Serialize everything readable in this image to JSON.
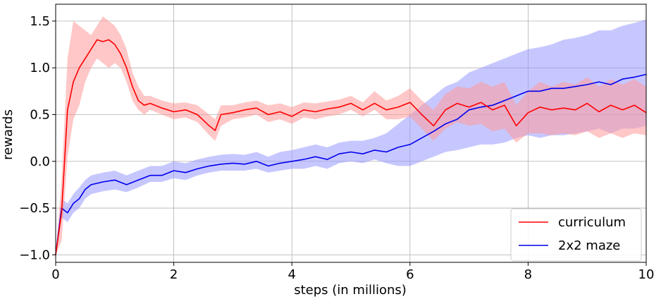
{
  "chart_data": {
    "type": "line",
    "title": "",
    "xlabel": "steps (in millions)",
    "ylabel": "rewards",
    "xlim": [
      0,
      10
    ],
    "ylim": [
      -1.08,
      1.68
    ],
    "xticks": [
      0,
      2,
      4,
      6,
      8,
      10
    ],
    "xtick_labels": [
      "0",
      "2",
      "4",
      "6",
      "8",
      "10"
    ],
    "yticks": [
      -1.0,
      -0.5,
      0.0,
      0.5,
      1.0,
      1.5
    ],
    "ytick_labels": [
      "−1.0",
      "−0.5",
      "0.0",
      "0.5",
      "1.0",
      "1.5"
    ],
    "grid": true,
    "legend_position": "bottom-right",
    "series": [
      {
        "name": "curriculum",
        "color": "#ff0000",
        "band_color": "#ff9999",
        "x": [
          0.0,
          0.1,
          0.2,
          0.3,
          0.4,
          0.5,
          0.6,
          0.7,
          0.8,
          0.9,
          1.0,
          1.1,
          1.2,
          1.3,
          1.4,
          1.5,
          1.6,
          1.8,
          2.0,
          2.2,
          2.4,
          2.6,
          2.7,
          2.8,
          3.0,
          3.2,
          3.4,
          3.6,
          3.8,
          4.0,
          4.2,
          4.4,
          4.6,
          4.8,
          5.0,
          5.2,
          5.4,
          5.6,
          5.8,
          6.0,
          6.2,
          6.4,
          6.6,
          6.8,
          7.0,
          7.2,
          7.4,
          7.6,
          7.8,
          8.0,
          8.2,
          8.4,
          8.6,
          8.8,
          9.0,
          9.2,
          9.4,
          9.6,
          9.8,
          10.0
        ],
        "mean": [
          -1.0,
          -0.55,
          0.55,
          0.85,
          1.0,
          1.1,
          1.2,
          1.3,
          1.28,
          1.3,
          1.25,
          1.15,
          1.0,
          0.8,
          0.65,
          0.6,
          0.62,
          0.57,
          0.53,
          0.55,
          0.5,
          0.38,
          0.33,
          0.5,
          0.52,
          0.55,
          0.57,
          0.5,
          0.53,
          0.48,
          0.55,
          0.53,
          0.56,
          0.58,
          0.62,
          0.55,
          0.62,
          0.55,
          0.58,
          0.63,
          0.5,
          0.38,
          0.55,
          0.62,
          0.58,
          0.63,
          0.55,
          0.6,
          0.38,
          0.52,
          0.58,
          0.55,
          0.57,
          0.55,
          0.62,
          0.53,
          0.6,
          0.55,
          0.6,
          0.52
        ],
        "lower": [
          -1.0,
          -0.85,
          0.05,
          0.45,
          0.6,
          0.85,
          1.0,
          1.1,
          1.05,
          1.0,
          1.05,
          1.0,
          0.85,
          0.65,
          0.55,
          0.5,
          0.55,
          0.5,
          0.45,
          0.47,
          0.42,
          0.28,
          0.22,
          0.38,
          0.45,
          0.47,
          0.5,
          0.42,
          0.45,
          0.4,
          0.47,
          0.45,
          0.48,
          0.5,
          0.55,
          0.48,
          0.55,
          0.45,
          0.45,
          0.48,
          0.35,
          0.22,
          0.35,
          0.42,
          0.38,
          0.4,
          0.32,
          0.35,
          0.2,
          0.3,
          0.3,
          0.28,
          0.3,
          0.28,
          0.32,
          0.25,
          0.3,
          0.25,
          0.3,
          0.28
        ],
        "upper": [
          -1.0,
          -0.2,
          1.1,
          1.5,
          1.45,
          1.4,
          1.35,
          1.45,
          1.55,
          1.5,
          1.45,
          1.35,
          1.2,
          0.95,
          0.8,
          0.7,
          0.7,
          0.65,
          0.62,
          0.63,
          0.6,
          0.5,
          0.45,
          0.6,
          0.6,
          0.63,
          0.65,
          0.6,
          0.62,
          0.58,
          0.63,
          0.62,
          0.64,
          0.66,
          0.7,
          0.63,
          0.75,
          0.65,
          0.7,
          0.78,
          0.65,
          0.55,
          0.72,
          0.8,
          0.78,
          0.85,
          0.8,
          0.85,
          0.6,
          0.75,
          0.85,
          0.8,
          0.85,
          0.82,
          0.9,
          0.8,
          0.88,
          0.82,
          0.88,
          0.8
        ]
      },
      {
        "name": "2x2 maze",
        "color": "#0000ee",
        "band_color": "#9999ff",
        "x": [
          0.0,
          0.1,
          0.2,
          0.3,
          0.4,
          0.5,
          0.6,
          0.8,
          1.0,
          1.2,
          1.4,
          1.6,
          1.8,
          2.0,
          2.2,
          2.4,
          2.6,
          2.8,
          3.0,
          3.2,
          3.4,
          3.6,
          3.8,
          4.0,
          4.2,
          4.4,
          4.6,
          4.8,
          5.0,
          5.2,
          5.4,
          5.6,
          5.8,
          6.0,
          6.2,
          6.4,
          6.6,
          6.8,
          7.0,
          7.2,
          7.4,
          7.6,
          7.8,
          8.0,
          8.2,
          8.4,
          8.6,
          8.8,
          9.0,
          9.2,
          9.4,
          9.6,
          9.8,
          10.0
        ],
        "mean": [
          -1.0,
          -0.5,
          -0.55,
          -0.45,
          -0.4,
          -0.3,
          -0.25,
          -0.22,
          -0.2,
          -0.25,
          -0.2,
          -0.15,
          -0.15,
          -0.1,
          -0.12,
          -0.08,
          -0.05,
          -0.03,
          -0.02,
          -0.03,
          0.0,
          -0.05,
          -0.02,
          0.0,
          0.02,
          0.05,
          0.02,
          0.08,
          0.1,
          0.08,
          0.12,
          0.1,
          0.15,
          0.18,
          0.25,
          0.32,
          0.4,
          0.45,
          0.55,
          0.58,
          0.6,
          0.65,
          0.7,
          0.75,
          0.75,
          0.78,
          0.78,
          0.8,
          0.82,
          0.85,
          0.82,
          0.88,
          0.9,
          0.93
        ],
        "lower": [
          -1.0,
          -0.6,
          -0.65,
          -0.55,
          -0.5,
          -0.4,
          -0.35,
          -0.32,
          -0.3,
          -0.33,
          -0.28,
          -0.22,
          -0.22,
          -0.18,
          -0.2,
          -0.15,
          -0.12,
          -0.1,
          -0.1,
          -0.1,
          -0.08,
          -0.12,
          -0.1,
          -0.08,
          -0.08,
          -0.05,
          -0.08,
          -0.02,
          0.0,
          -0.02,
          0.02,
          -0.02,
          -0.05,
          -0.05,
          0.0,
          0.05,
          0.1,
          0.12,
          0.15,
          0.18,
          0.18,
          0.2,
          0.25,
          0.28,
          0.25,
          0.28,
          0.28,
          0.3,
          0.32,
          0.35,
          0.3,
          0.35,
          0.35,
          0.38
        ],
        "upper": [
          -1.0,
          -0.4,
          -0.45,
          -0.35,
          -0.28,
          -0.2,
          -0.15,
          -0.12,
          -0.1,
          -0.15,
          -0.1,
          -0.05,
          -0.05,
          0.0,
          -0.02,
          0.02,
          0.05,
          0.07,
          0.08,
          0.07,
          0.1,
          0.05,
          0.1,
          0.12,
          0.15,
          0.18,
          0.15,
          0.2,
          0.22,
          0.22,
          0.25,
          0.3,
          0.4,
          0.5,
          0.6,
          0.7,
          0.8,
          0.85,
          0.95,
          1.0,
          1.05,
          1.1,
          1.15,
          1.2,
          1.22,
          1.25,
          1.3,
          1.32,
          1.35,
          1.4,
          1.4,
          1.45,
          1.48,
          1.52
        ]
      }
    ]
  }
}
